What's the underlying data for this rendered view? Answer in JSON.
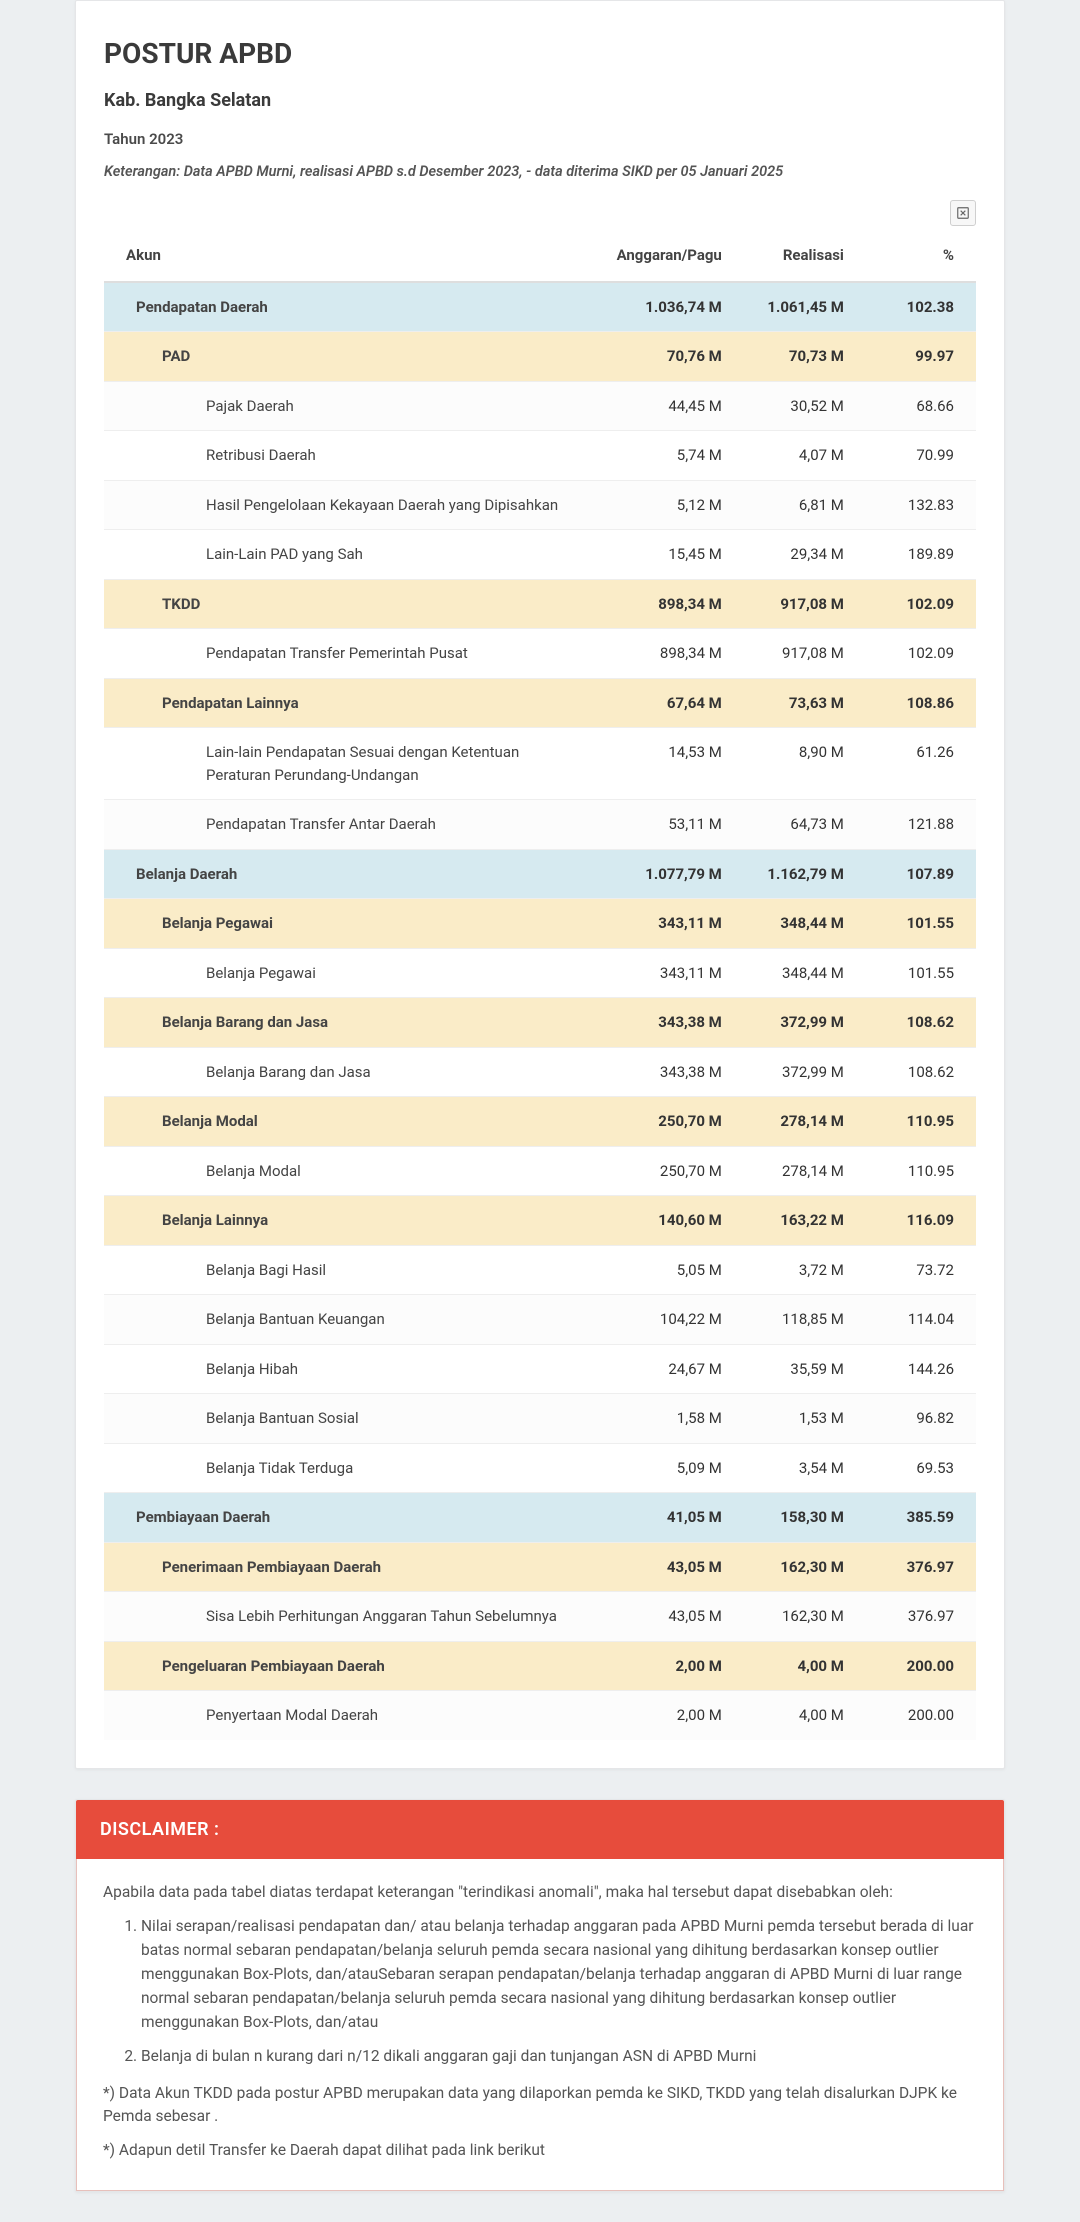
{
  "header": {
    "title": "POSTUR APBD",
    "subtitle": "Kab. Bangka Selatan",
    "year": "Tahun 2023",
    "note": "Keterangan: Data APBD Murni, realisasi APBD s.d Desember 2023, - data diterima SIKD per 05 Januari 2025"
  },
  "export": {
    "tooltip": "Export Excel"
  },
  "columns": {
    "akun": "Akun",
    "anggaran": "Anggaran/Pagu",
    "realisasi": "Realisasi",
    "pct": "%"
  },
  "rows": [
    {
      "level": 0,
      "label": "Pendapatan Daerah",
      "ang": "1.036,74 M",
      "real": "1.061,45 M",
      "pct": "102.38"
    },
    {
      "level": 1,
      "label": "PAD",
      "ang": "70,76 M",
      "real": "70,73 M",
      "pct": "99.97"
    },
    {
      "level": 2,
      "label": "Pajak Daerah",
      "ang": "44,45 M",
      "real": "30,52 M",
      "pct": "68.66"
    },
    {
      "level": 2,
      "label": "Retribusi Daerah",
      "ang": "5,74 M",
      "real": "4,07 M",
      "pct": "70.99"
    },
    {
      "level": 2,
      "label": "Hasil Pengelolaan Kekayaan Daerah yang Dipisahkan",
      "ang": "5,12 M",
      "real": "6,81 M",
      "pct": "132.83"
    },
    {
      "level": 2,
      "label": "Lain-Lain PAD yang Sah",
      "ang": "15,45 M",
      "real": "29,34 M",
      "pct": "189.89"
    },
    {
      "level": 1,
      "label": "TKDD",
      "ang": "898,34 M",
      "real": "917,08 M",
      "pct": "102.09"
    },
    {
      "level": 2,
      "label": "Pendapatan Transfer Pemerintah Pusat",
      "ang": "898,34 M",
      "real": "917,08 M",
      "pct": "102.09"
    },
    {
      "level": 1,
      "label": "Pendapatan Lainnya",
      "ang": "67,64 M",
      "real": "73,63 M",
      "pct": "108.86"
    },
    {
      "level": 2,
      "label": "Lain-lain Pendapatan Sesuai dengan Ketentuan Peraturan Perundang-Undangan",
      "ang": "14,53 M",
      "real": "8,90 M",
      "pct": "61.26"
    },
    {
      "level": 2,
      "label": "Pendapatan Transfer Antar Daerah",
      "ang": "53,11 M",
      "real": "64,73 M",
      "pct": "121.88"
    },
    {
      "level": 0,
      "label": "Belanja Daerah",
      "ang": "1.077,79 M",
      "real": "1.162,79 M",
      "pct": "107.89"
    },
    {
      "level": 1,
      "label": "Belanja Pegawai",
      "ang": "343,11 M",
      "real": "348,44 M",
      "pct": "101.55"
    },
    {
      "level": 2,
      "label": "Belanja Pegawai",
      "ang": "343,11 M",
      "real": "348,44 M",
      "pct": "101.55"
    },
    {
      "level": 1,
      "label": "Belanja Barang dan Jasa",
      "ang": "343,38 M",
      "real": "372,99 M",
      "pct": "108.62"
    },
    {
      "level": 2,
      "label": "Belanja Barang dan Jasa",
      "ang": "343,38 M",
      "real": "372,99 M",
      "pct": "108.62"
    },
    {
      "level": 1,
      "label": "Belanja Modal",
      "ang": "250,70 M",
      "real": "278,14 M",
      "pct": "110.95"
    },
    {
      "level": 2,
      "label": "Belanja Modal",
      "ang": "250,70 M",
      "real": "278,14 M",
      "pct": "110.95"
    },
    {
      "level": 1,
      "label": "Belanja Lainnya",
      "ang": "140,60 M",
      "real": "163,22 M",
      "pct": "116.09"
    },
    {
      "level": 2,
      "label": "Belanja Bagi Hasil",
      "ang": "5,05 M",
      "real": "3,72 M",
      "pct": "73.72"
    },
    {
      "level": 2,
      "label": "Belanja Bantuan Keuangan",
      "ang": "104,22 M",
      "real": "118,85 M",
      "pct": "114.04"
    },
    {
      "level": 2,
      "label": "Belanja Hibah",
      "ang": "24,67 M",
      "real": "35,59 M",
      "pct": "144.26"
    },
    {
      "level": 2,
      "label": "Belanja Bantuan Sosial",
      "ang": "1,58 M",
      "real": "1,53 M",
      "pct": "96.82"
    },
    {
      "level": 2,
      "label": "Belanja Tidak Terduga",
      "ang": "5,09 M",
      "real": "3,54 M",
      "pct": "69.53"
    },
    {
      "level": 0,
      "label": "Pembiayaan Daerah",
      "ang": "41,05 M",
      "real": "158,30 M",
      "pct": "385.59"
    },
    {
      "level": 1,
      "label": "Penerimaan Pembiayaan Daerah",
      "ang": "43,05 M",
      "real": "162,30 M",
      "pct": "376.97"
    },
    {
      "level": 2,
      "label": "Sisa Lebih Perhitungan Anggaran Tahun Sebelumnya",
      "ang": "43,05 M",
      "real": "162,30 M",
      "pct": "376.97"
    },
    {
      "level": 1,
      "label": "Pengeluaran Pembiayaan Daerah",
      "ang": "2,00 M",
      "real": "4,00 M",
      "pct": "200.00"
    },
    {
      "level": 2,
      "label": "Penyertaan Modal Daerah",
      "ang": "2,00 M",
      "real": "4,00 M",
      "pct": "200.00"
    }
  ],
  "disclaimer": {
    "title": "DISCLAIMER :",
    "intro": "Apabila data pada tabel diatas terdapat keterangan \"terindikasi anomali\", maka hal tersebut dapat disebabkan oleh:",
    "items": [
      "Nilai serapan/realisasi pendapatan dan/ atau belanja terhadap anggaran pada APBD Murni pemda tersebut berada di luar batas normal sebaran pendapatan/belanja seluruh pemda secara nasional yang dihitung berdasarkan konsep outlier menggunakan Box-Plots, dan/atauSebaran serapan pendapatan/belanja terhadap anggaran di APBD Murni di luar range normal sebaran pendapatan/belanja seluruh pemda secara nasional yang dihitung berdasarkan konsep outlier menggunakan Box-Plots, dan/atau",
      "Belanja di bulan n kurang dari n/12 dikali anggaran gaji dan tunjangan ASN di APBD Murni"
    ],
    "note1": "*) Data Akun TKDD pada postur APBD merupakan data yang dilaporkan pemda ke SIKD, TKDD yang telah disalurkan DJPK ke Pemda sebesar .",
    "note2": "*) Adapun detil Transfer ke Daerah dapat dilihat pada link berikut"
  },
  "style": {
    "page_bg": "#eceff1",
    "card_bg": "#ffffff",
    "level0_bg": "#d6eaf0",
    "level1_bg": "#faecc8",
    "disclaimer_header_bg": "#e74c3c",
    "disclaimer_border": "#e7c0bb"
  }
}
